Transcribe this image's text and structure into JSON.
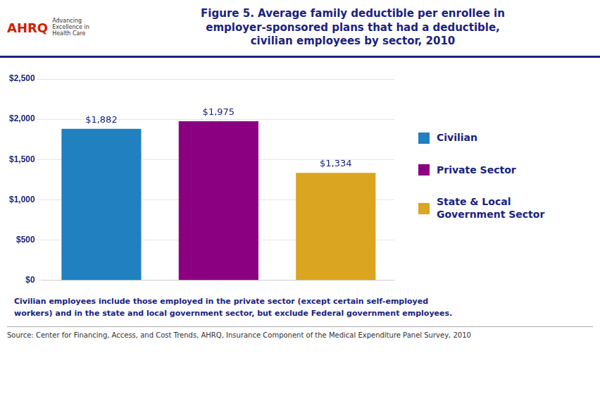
{
  "chart_data": {
    "type": "bar",
    "title": "Figure 5. Average family deductible per enrollee in\nemployer-sponsored plans that had a deductible,\ncivilian employees by sector, 2010",
    "categories": [
      "Civilian",
      "Private Sector",
      "State & Local\nGovernment Sector"
    ],
    "values": [
      1882,
      1975,
      1334
    ],
    "value_labels": [
      "$1,882",
      "$1,975",
      "$1,334"
    ],
    "data_labels": true,
    "colors": [
      "#2080C0",
      "#8B0080",
      "#DAA520"
    ],
    "ylim": [
      0,
      2500
    ],
    "yticks": [
      {
        "value": 0,
        "label": "$0"
      },
      {
        "value": 500,
        "label": "$500"
      },
      {
        "value": 1000,
        "label": "$1,000"
      },
      {
        "value": 1500,
        "label": "$1,500"
      },
      {
        "value": 2000,
        "label": "$2,000"
      },
      {
        "value": 2500,
        "label": "$2,500"
      }
    ],
    "grid": true,
    "legend": "right",
    "tick_labels": "y",
    "annotations": [
      "AHRQ",
      "Advancing\nExcellence in\nHealth Care",
      "Civilian  employees  include  those employed  in the private sector (except certain self-employed",
      "workers) and in the state and local government sector, but exclude Federal government employees.",
      "Source:  Center for Financing, Access, and Cost Trends, AHRQ, Insurance Component of the Medical Expenditure Panel Survey,  2010"
    ]
  }
}
